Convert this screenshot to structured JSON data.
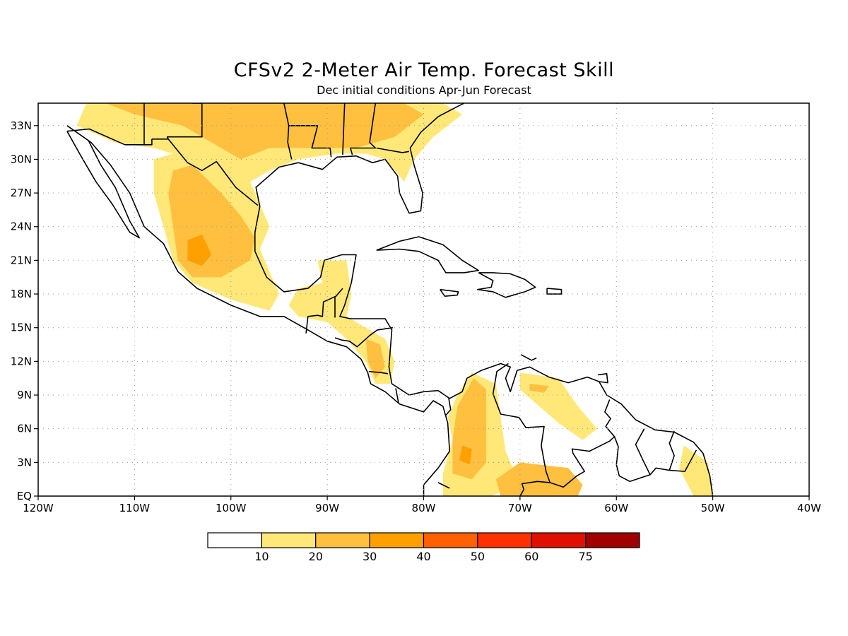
{
  "header": {
    "title": "CFSv2 2-Meter Air Temp. Forecast Skill",
    "subtitle": "Dec initial conditions  Apr-Jun Forecast"
  },
  "map": {
    "lon_range": [
      -120,
      -40
    ],
    "lat_range": [
      0,
      35
    ],
    "lon_ticks": [
      {
        "v": -120,
        "label": "120W"
      },
      {
        "v": -110,
        "label": "110W"
      },
      {
        "v": -100,
        "label": "100W"
      },
      {
        "v": -90,
        "label": "90W"
      },
      {
        "v": -80,
        "label": "80W"
      },
      {
        "v": -70,
        "label": "70W"
      },
      {
        "v": -60,
        "label": "60W"
      },
      {
        "v": -50,
        "label": "50W"
      },
      {
        "v": -40,
        "label": "40W"
      }
    ],
    "lat_ticks": [
      {
        "v": 0,
        "label": "EQ"
      },
      {
        "v": 3,
        "label": "3N"
      },
      {
        "v": 6,
        "label": "6N"
      },
      {
        "v": 9,
        "label": "9N"
      },
      {
        "v": 12,
        "label": "12N"
      },
      {
        "v": 15,
        "label": "15N"
      },
      {
        "v": 18,
        "label": "18N"
      },
      {
        "v": 21,
        "label": "21N"
      },
      {
        "v": 24,
        "label": "24N"
      },
      {
        "v": 27,
        "label": "27N"
      },
      {
        "v": 30,
        "label": "30N"
      },
      {
        "v": 33,
        "label": "33N"
      }
    ],
    "grid": "dotted"
  },
  "legend": {
    "colors": [
      "#ffffff",
      "#ffe878",
      "#ffc040",
      "#ffa000",
      "#ff6000",
      "#ff3000",
      "#e01000",
      "#a00000"
    ],
    "labels": [
      "10",
      "20",
      "30",
      "40",
      "50",
      "60",
      "75"
    ]
  },
  "colors": {
    "level1": "#ffe878",
    "level2": "#ffc040",
    "level3": "#ffa000",
    "level4": "#ff6000",
    "coast": "#000000"
  },
  "chart_data": {
    "type": "heatmap",
    "title": "CFSv2 2-Meter Air Temp. Forecast Skill",
    "subtitle": "Dec initial conditions  Apr-Jun Forecast",
    "xlim": [
      -120,
      -40
    ],
    "ylim": [
      0,
      35
    ],
    "contour_levels": [
      10,
      20,
      30,
      40,
      50,
      60,
      75
    ],
    "regions": [
      {
        "name": "Southeastern US",
        "level": 1,
        "poly": [
          [
            -115,
            35
          ],
          [
            -103,
            35
          ],
          [
            -85,
            35
          ],
          [
            -78,
            35
          ],
          [
            -76,
            34
          ],
          [
            -79,
            32
          ],
          [
            -81,
            30
          ],
          [
            -82,
            28
          ],
          [
            -84,
            30
          ],
          [
            -86,
            30.5
          ],
          [
            -89,
            30.5
          ],
          [
            -93,
            30
          ],
          [
            -96,
            29
          ],
          [
            -98,
            28
          ],
          [
            -100,
            28
          ],
          [
            -104,
            30
          ],
          [
            -108,
            31
          ],
          [
            -112,
            31.5
          ],
          [
            -116,
            33
          ]
        ]
      },
      {
        "name": "Southeastern US core",
        "level": 2,
        "poly": [
          [
            -113,
            35
          ],
          [
            -104,
            35
          ],
          [
            -90,
            35
          ],
          [
            -82,
            35
          ],
          [
            -80,
            34
          ],
          [
            -83,
            32
          ],
          [
            -87,
            31
          ],
          [
            -92,
            31
          ],
          [
            -96,
            31
          ],
          [
            -99,
            30
          ],
          [
            -102,
            31.5
          ],
          [
            -105,
            33
          ],
          [
            -110,
            34
          ]
        ]
      },
      {
        "name": "Southeastern US hotspot",
        "level": 2,
        "poly": [
          [
            -92,
            33
          ],
          [
            -89,
            33.5
          ],
          [
            -88,
            32
          ],
          [
            -90,
            31
          ],
          [
            -92,
            31.5
          ]
        ]
      },
      {
        "name": "Mexico plateau",
        "level": 1,
        "poly": [
          [
            -108,
            30
          ],
          [
            -104,
            31
          ],
          [
            -101,
            30
          ],
          [
            -98,
            28
          ],
          [
            -97,
            26
          ],
          [
            -96,
            24
          ],
          [
            -97,
            22
          ],
          [
            -96,
            20
          ],
          [
            -95,
            18
          ],
          [
            -96,
            16.5
          ],
          [
            -100,
            17.5
          ],
          [
            -104,
            19
          ],
          [
            -106,
            21
          ],
          [
            -107,
            24
          ],
          [
            -108,
            27
          ]
        ]
      },
      {
        "name": "Mexico plateau core",
        "level": 2,
        "poly": [
          [
            -106,
            29
          ],
          [
            -104,
            29.5
          ],
          [
            -101,
            27
          ],
          [
            -99,
            25
          ],
          [
            -97.5,
            23
          ],
          [
            -98,
            21
          ],
          [
            -101,
            19.5
          ],
          [
            -104,
            19.5
          ],
          [
            -105.5,
            21
          ],
          [
            -106,
            24
          ],
          [
            -106.5,
            27
          ]
        ]
      },
      {
        "name": "Mexico hotspot",
        "level": 3,
        "poly": [
          [
            -104.5,
            22.8
          ],
          [
            -103,
            23.3
          ],
          [
            -102,
            21.5
          ],
          [
            -103,
            20.5
          ],
          [
            -104.5,
            21
          ]
        ]
      },
      {
        "name": "Yucatan and Central America",
        "level": 1,
        "poly": [
          [
            -91,
            21
          ],
          [
            -88,
            21
          ],
          [
            -87.5,
            18
          ],
          [
            -88,
            16
          ],
          [
            -86,
            15
          ],
          [
            -84,
            14
          ],
          [
            -83,
            12
          ],
          [
            -83.5,
            10
          ],
          [
            -85,
            10
          ],
          [
            -86,
            12
          ],
          [
            -88,
            14
          ],
          [
            -90,
            15.5
          ],
          [
            -93,
            16
          ],
          [
            -94,
            17
          ],
          [
            -93,
            18.5
          ],
          [
            -90.5,
            19
          ]
        ]
      },
      {
        "name": "Central America core",
        "level": 2,
        "poly": [
          [
            -86,
            14
          ],
          [
            -84.5,
            13.5
          ],
          [
            -84,
            11.5
          ],
          [
            -85,
            10.5
          ],
          [
            -85.8,
            12
          ]
        ]
      },
      {
        "name": "Colombia",
        "level": 1,
        "poly": [
          [
            -75,
            11
          ],
          [
            -72.5,
            10
          ],
          [
            -72,
            7
          ],
          [
            -71.5,
            4
          ],
          [
            -70,
            1
          ],
          [
            -73,
            0
          ],
          [
            -78,
            0
          ],
          [
            -78,
            2
          ],
          [
            -77,
            5
          ],
          [
            -77.5,
            7
          ],
          [
            -76.5,
            9
          ]
        ]
      },
      {
        "name": "Colombia core",
        "level": 2,
        "poly": [
          [
            -74.8,
            10.5
          ],
          [
            -73.5,
            9.5
          ],
          [
            -73.5,
            6
          ],
          [
            -73.5,
            3
          ],
          [
            -75,
            1.5
          ],
          [
            -77,
            2
          ],
          [
            -77,
            5
          ],
          [
            -76.5,
            8
          ]
        ]
      },
      {
        "name": "Colombia hotspot",
        "level": 3,
        "poly": [
          [
            -76,
            4.5
          ],
          [
            -75,
            4.2
          ],
          [
            -75.2,
            2.8
          ],
          [
            -76.3,
            3.2
          ]
        ]
      },
      {
        "name": "Venezuela coast",
        "level": 1,
        "poly": [
          [
            -70,
            11
          ],
          [
            -66,
            10.5
          ],
          [
            -64,
            8
          ],
          [
            -62,
            6
          ],
          [
            -63.5,
            5
          ],
          [
            -66,
            6.5
          ],
          [
            -68,
            8
          ],
          [
            -70,
            9.5
          ]
        ]
      },
      {
        "name": "Venezuela core",
        "level": 2,
        "poly": [
          [
            -69,
            10
          ],
          [
            -67,
            9.8
          ],
          [
            -67.5,
            9.2
          ],
          [
            -69,
            9.4
          ]
        ]
      },
      {
        "name": "Amazon north",
        "level": 2,
        "poly": [
          [
            -70,
            3
          ],
          [
            -65,
            2.5
          ],
          [
            -63.5,
            1
          ],
          [
            -64,
            0
          ],
          [
            -72,
            0
          ],
          [
            -72.5,
            1.5
          ]
        ]
      },
      {
        "name": "Guiana coast",
        "level": 1,
        "poly": [
          [
            -53,
            4.5
          ],
          [
            -50.5,
            3
          ],
          [
            -50,
            0
          ],
          [
            -52,
            0
          ],
          [
            -53.5,
            2.5
          ]
        ]
      }
    ]
  }
}
